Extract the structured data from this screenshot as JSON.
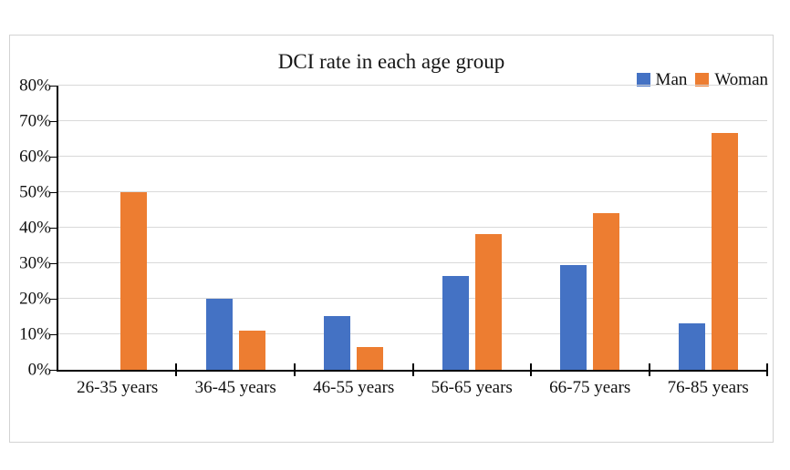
{
  "chart_data": {
    "type": "bar",
    "title": "DCI rate in each age group",
    "categories": [
      "26-35 years",
      "36-45 years",
      "46-55 years",
      "56-65 years",
      "66-75 years",
      "76-85 years"
    ],
    "series": [
      {
        "name": "Man",
        "color": "#4472C4",
        "values": [
          0,
          20,
          15.2,
          26.3,
          29.4,
          13
        ]
      },
      {
        "name": "Woman",
        "color": "#ED7D31",
        "values": [
          50,
          11.1,
          6.5,
          38.2,
          44.1,
          66.7
        ]
      }
    ],
    "xlabel": "",
    "ylabel": "",
    "ylim": [
      0,
      80
    ],
    "y_ticks": [
      "0%",
      "10%",
      "20%",
      "30%",
      "40%",
      "50%",
      "60%",
      "70%",
      "80%"
    ],
    "grid": true,
    "legend_position": "top-right"
  },
  "colors": {
    "gridline": "#d9d9d9",
    "axis": "#000000",
    "frame_border": "#d3d3d3",
    "text": "#151515",
    "background": "#ffffff"
  }
}
